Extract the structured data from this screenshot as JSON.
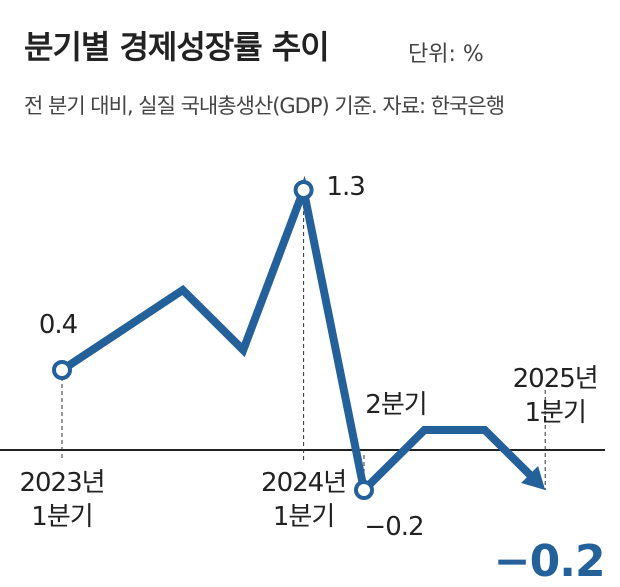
{
  "chart_data": {
    "type": "line",
    "title": "분기별 경제성장률 추이",
    "unit": "단위: %",
    "subtitle": "전 분기 대비, 실질 국내총생산(GDP) 기준. 자료: 한국은행",
    "categories": [
      "2023년\n1분기",
      null,
      null,
      null,
      "2024년\n1분기",
      "2분기",
      null,
      null,
      "2025년\n1분기"
    ],
    "series": [
      {
        "name": "경제성장률",
        "color": "#24619a",
        "values": [
          0.4,
          0.6,
          0.8,
          0.5,
          1.3,
          -0.2,
          0.1,
          0.1,
          -0.2
        ],
        "value_labels": [
          "0.4",
          null,
          null,
          null,
          "1.3",
          "−0.2",
          null,
          null,
          "−0.2"
        ]
      }
    ],
    "ylim": [
      -0.5,
      1.5
    ]
  }
}
